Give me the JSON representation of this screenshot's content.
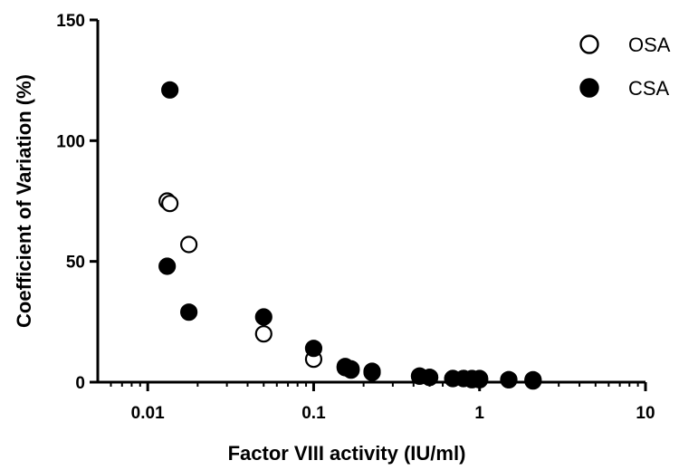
{
  "chart_data": {
    "type": "scatter",
    "x_scale": "log",
    "xlabel": "Factor VIII activity (IU/ml)",
    "ylabel": "Coefficient of Variation (%)",
    "xlim": [
      0.005,
      10
    ],
    "ylim": [
      0,
      150
    ],
    "x_ticks": [
      {
        "value": 0.01,
        "label": "0.01"
      },
      {
        "value": 0.1,
        "label": "0.1"
      },
      {
        "value": 1,
        "label": "1"
      },
      {
        "value": 10,
        "label": "10"
      }
    ],
    "y_ticks": [
      {
        "value": 0,
        "label": "0"
      },
      {
        "value": 50,
        "label": "50"
      },
      {
        "value": 100,
        "label": "100"
      },
      {
        "value": 150,
        "label": "150"
      }
    ],
    "grid": false,
    "legend_position": "top-right",
    "series": [
      {
        "name": "OSA",
        "marker": "open-circle",
        "points": [
          {
            "x": 0.0131,
            "y": 75
          },
          {
            "x": 0.0136,
            "y": 74
          },
          {
            "x": 0.0177,
            "y": 57
          },
          {
            "x": 0.05,
            "y": 20
          },
          {
            "x": 0.1,
            "y": 9.5
          },
          {
            "x": 0.155,
            "y": 6
          },
          {
            "x": 0.168,
            "y": 5
          },
          {
            "x": 0.225,
            "y": 4
          },
          {
            "x": 0.435,
            "y": 2.5
          },
          {
            "x": 0.5,
            "y": 2
          },
          {
            "x": 0.69,
            "y": 1.5
          },
          {
            "x": 0.8,
            "y": 1.5
          },
          {
            "x": 0.9,
            "y": 1.5
          },
          {
            "x": 1.0,
            "y": 1.5
          },
          {
            "x": 1.5,
            "y": 1
          },
          {
            "x": 2.1,
            "y": 1
          }
        ]
      },
      {
        "name": "CSA",
        "marker": "filled-circle",
        "points": [
          {
            "x": 0.0136,
            "y": 121
          },
          {
            "x": 0.0131,
            "y": 48
          },
          {
            "x": 0.0177,
            "y": 29
          },
          {
            "x": 0.05,
            "y": 27
          },
          {
            "x": 0.1,
            "y": 14
          },
          {
            "x": 0.155,
            "y": 6.5
          },
          {
            "x": 0.168,
            "y": 5.5
          },
          {
            "x": 0.225,
            "y": 4.5
          },
          {
            "x": 0.435,
            "y": 2.5
          },
          {
            "x": 0.5,
            "y": 2
          },
          {
            "x": 0.69,
            "y": 1.5
          },
          {
            "x": 0.8,
            "y": 1.5
          },
          {
            "x": 0.9,
            "y": 1
          },
          {
            "x": 1.0,
            "y": 1
          },
          {
            "x": 1.5,
            "y": 1
          },
          {
            "x": 2.1,
            "y": 0.5
          }
        ]
      }
    ]
  }
}
